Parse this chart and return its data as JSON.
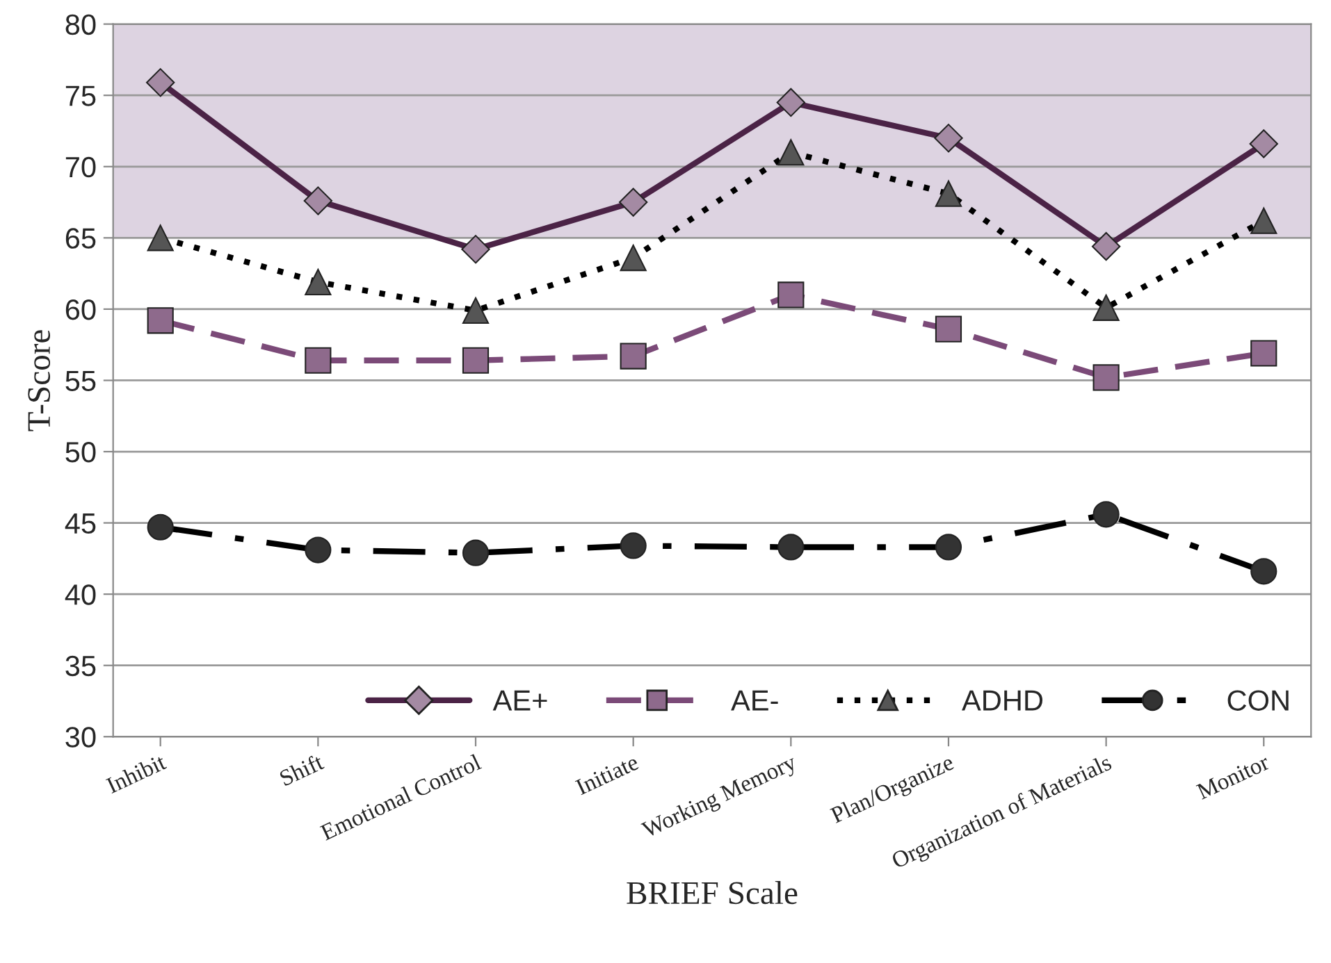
{
  "chart_data": {
    "type": "line",
    "xlabel": "BRIEF Scale",
    "ylabel": "T-Score",
    "categories": [
      "Inhibit",
      "Shift",
      "Emotional Control",
      "Initiate",
      "Working Memory",
      "Plan/Organize",
      "Organization of Materials",
      "Monitor"
    ],
    "series": [
      {
        "name": "AE+",
        "color": "#4b2346",
        "marker": "diamond",
        "line_style": "solid",
        "values": [
          75.9,
          67.6,
          64.2,
          67.5,
          74.5,
          72.0,
          64.4,
          71.6
        ]
      },
      {
        "name": "AE-",
        "color": "#7b4a78",
        "marker": "square",
        "line_style": "dashed",
        "values": [
          59.2,
          56.4,
          56.4,
          56.7,
          61.0,
          58.6,
          55.2,
          56.9
        ]
      },
      {
        "name": "ADHD",
        "color": "#000000",
        "marker": "triangle",
        "line_style": "dotted",
        "values": [
          65.0,
          61.9,
          59.9,
          63.6,
          71.0,
          68.1,
          60.1,
          66.2
        ]
      },
      {
        "name": "CON",
        "color": "#000000",
        "marker": "circle",
        "line_style": "dashdot",
        "values": [
          44.7,
          43.1,
          42.9,
          43.4,
          43.3,
          43.3,
          45.6,
          41.6
        ]
      }
    ],
    "ylim": [
      30,
      80
    ],
    "yticks": [
      30,
      35,
      40,
      45,
      50,
      55,
      60,
      65,
      70,
      75,
      80
    ],
    "grid": "y",
    "legend": "bottom right",
    "bands": [
      {
        "axis": "y",
        "from": 65,
        "to": 80,
        "color": "#ddd3e1"
      }
    ]
  }
}
